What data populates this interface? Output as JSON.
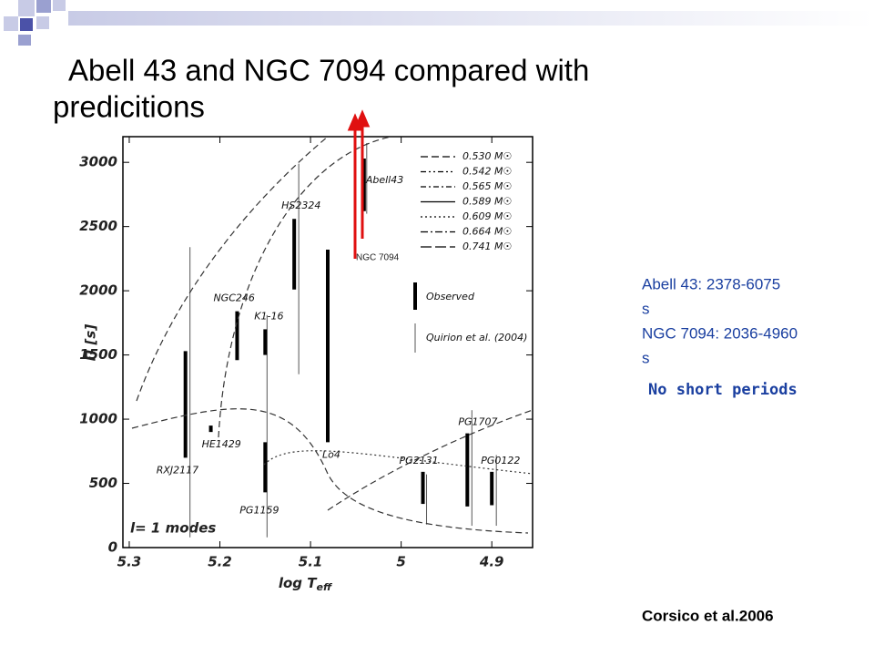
{
  "slide": {
    "title_line1": "Abell 43 and NGC 7094 compared with",
    "title_line2": "predicitions",
    "notes": [
      "Abell 43:     2378-6075",
      "s",
      "NGC 7094: 2036-4960",
      "s"
    ],
    "highlight": "No short periods",
    "citation": "Corsico et al.2006"
  },
  "chart_data": {
    "type": "range",
    "y_label": "Π [s]",
    "x_label": "log T",
    "x_label_sub": "eff",
    "annotation": "l= 1 modes",
    "arrow_label": "NGC 7094",
    "xlim": [
      5.307,
      4.855
    ],
    "ylim": [
      0,
      3200
    ],
    "xticks": [
      5.3,
      5.2,
      5.1,
      5,
      4.9
    ],
    "yticks": [
      0,
      500,
      1000,
      1500,
      2000,
      2500,
      3000
    ],
    "observed_label": "Observed",
    "quirion_label": "Quirion et al. (2004)",
    "tracks": [
      "0.530 M☉",
      "0.542 M☉",
      "0.565 M☉",
      "0.589 M☉",
      "0.609 M☉",
      "0.664 M☉",
      "0.741 M☉"
    ],
    "stars": [
      "RXJ2117",
      "HE1429",
      "NGC246",
      "PG1159",
      "K1-16",
      "HS2324",
      "Lo4",
      "Abell43",
      "PG2131",
      "PG1707",
      "PG0122"
    ],
    "x": [
      5.238,
      5.21,
      5.181,
      5.15,
      5.15,
      5.118,
      5.081,
      5.041,
      4.976,
      4.927,
      4.9
    ],
    "low": [
      700,
      900,
      1460,
      430,
      1500,
      2010,
      820,
      2620,
      340,
      320,
      330
    ],
    "high": [
      1530,
      950,
      1840,
      820,
      1700,
      2560,
      2320,
      3030,
      590,
      890,
      590
    ],
    "quirion_x": [
      5.233,
      5.148,
      5.113,
      5.038,
      4.972,
      4.922,
      4.895
    ],
    "quirion_low": [
      80,
      80,
      1350,
      2600,
      180,
      170,
      170
    ],
    "quirion_high": [
      2340,
      1810,
      2990,
      3150,
      570,
      1070,
      720
    ]
  }
}
